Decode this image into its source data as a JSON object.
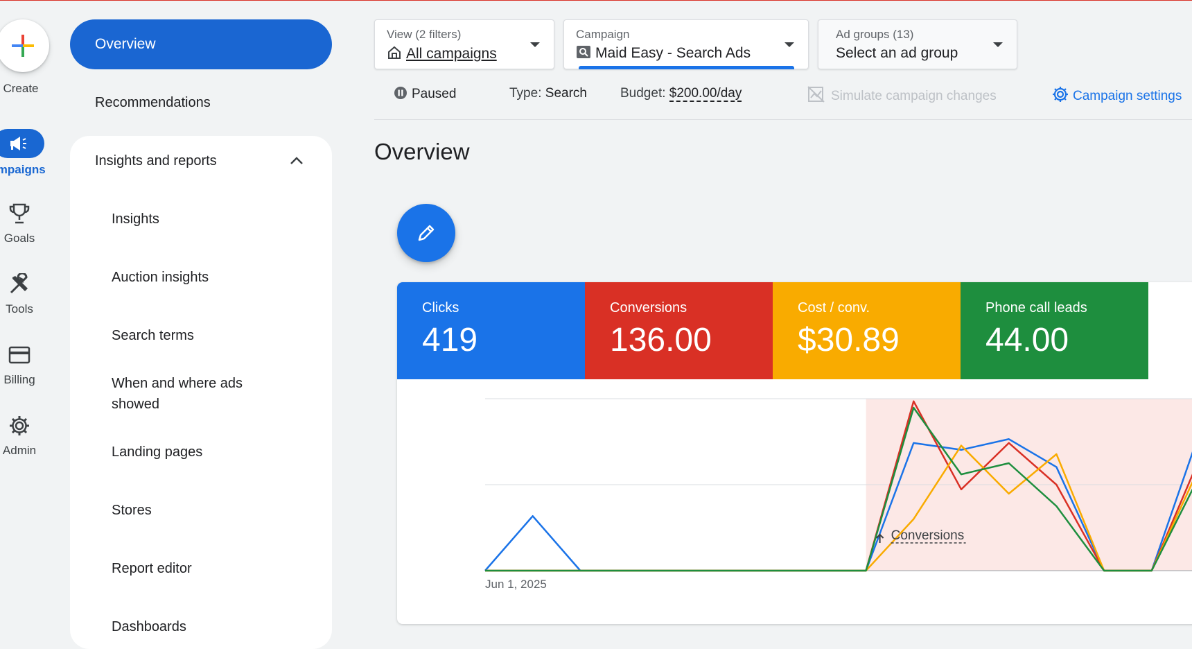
{
  "rail": {
    "create_label": "Create",
    "campaigns_label": "ampaigns",
    "goals_label": "Goals",
    "tools_label": "Tools",
    "billing_label": "Billing",
    "admin_label": "Admin"
  },
  "nav": {
    "overview": "Overview",
    "recommendations": "Recommendations",
    "section_title": "Insights and reports",
    "items": [
      "Insights",
      "Auction insights",
      "Search terms",
      "When and where ads showed",
      "Landing pages",
      "Stores",
      "Report editor",
      "Dashboards"
    ]
  },
  "filters": {
    "view_label": "View (2 filters)",
    "view_value": "All campaigns",
    "campaign_label": "Campaign",
    "campaign_value": "Maid Easy - Search Ads",
    "adgroups_label": "Ad groups (13)",
    "adgroups_value": "Select an ad group"
  },
  "status": {
    "state": "Paused",
    "type_label": "Type:",
    "type_value": "Search",
    "budget_label": "Budget:",
    "budget_value": "$200.00/day",
    "simulate": "Simulate campaign changes",
    "settings": "Campaign settings"
  },
  "page_title": "Overview",
  "metrics": [
    {
      "label": "Clicks",
      "value": "419",
      "color": "#1a73e8"
    },
    {
      "label": "Conversions",
      "value": "136.00",
      "color": "#d93025"
    },
    {
      "label": "Cost / conv.",
      "value": "$30.89",
      "color": "#f9ab00"
    },
    {
      "label": "Phone call leads",
      "value": "44.00",
      "color": "#1e8e3e"
    }
  ],
  "chart_data": {
    "type": "line",
    "x_start_label": "Jun 1, 2025",
    "annotation": "Conversions",
    "grid": true,
    "series": [
      {
        "name": "Clicks",
        "color": "#1a73e8",
        "values": [
          0,
          1.27,
          0,
          0,
          0,
          0,
          0,
          0,
          0,
          2.97,
          2.81,
          3.06,
          2.41,
          0,
          0,
          3.2
        ]
      },
      {
        "name": "Conversions",
        "color": "#d93025",
        "values": [
          0,
          0,
          0,
          0,
          0,
          0,
          0,
          0,
          0,
          3.94,
          1.89,
          2.97,
          2.0,
          0,
          0,
          2.6
        ]
      },
      {
        "name": "Cost / conv.",
        "color": "#f9ab00",
        "values": [
          0,
          0,
          0,
          0,
          0,
          0,
          0,
          0,
          0,
          1.2,
          2.91,
          1.79,
          2.71,
          0,
          0,
          2.4
        ]
      },
      {
        "name": "Phone call leads",
        "color": "#1e8e3e",
        "values": [
          0,
          0,
          0,
          0,
          0,
          0,
          0,
          0,
          0,
          3.79,
          2.24,
          2.5,
          1.5,
          0,
          0,
          2.2
        ]
      }
    ],
    "highlight_from_index": 8,
    "ylim": [
      0,
      4
    ]
  }
}
